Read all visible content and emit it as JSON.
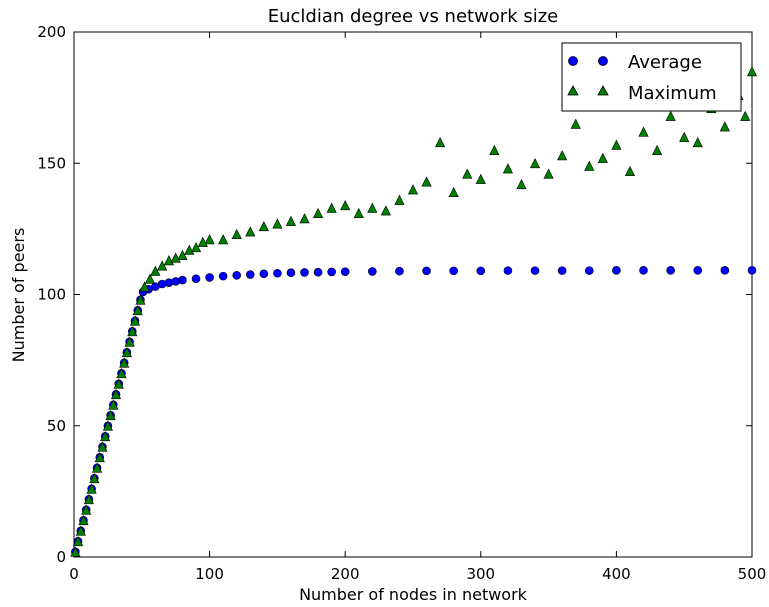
{
  "chart_data": {
    "type": "scatter",
    "title": "Eucldian degree vs network size",
    "xlabel": "Number of nodes in network",
    "ylabel": "Number of peers",
    "xlim": [
      0,
      500
    ],
    "ylim": [
      0,
      200
    ],
    "x_ticks": [
      0,
      100,
      200,
      300,
      400,
      500
    ],
    "y_ticks": [
      0,
      50,
      100,
      150,
      200
    ],
    "legend": {
      "placement": "top-right",
      "entries": [
        "Average",
        "Maximum"
      ]
    },
    "series": [
      {
        "name": "Average",
        "marker": "circle",
        "color": "#0000ff",
        "points": [
          [
            1,
            2
          ],
          [
            3,
            6
          ],
          [
            5,
            10
          ],
          [
            7,
            14
          ],
          [
            9,
            18
          ],
          [
            11,
            22
          ],
          [
            13,
            26
          ],
          [
            15,
            30
          ],
          [
            17,
            34
          ],
          [
            19,
            38
          ],
          [
            21,
            42
          ],
          [
            23,
            46
          ],
          [
            25,
            50
          ],
          [
            27,
            54
          ],
          [
            29,
            58
          ],
          [
            31,
            62
          ],
          [
            33,
            66
          ],
          [
            35,
            70
          ],
          [
            37,
            74
          ],
          [
            39,
            78
          ],
          [
            41,
            82
          ],
          [
            43,
            86
          ],
          [
            45,
            90
          ],
          [
            47,
            94
          ],
          [
            49,
            98
          ],
          [
            51,
            101
          ],
          [
            55,
            102
          ],
          [
            60,
            103
          ],
          [
            65,
            104
          ],
          [
            70,
            104.5
          ],
          [
            75,
            105
          ],
          [
            80,
            105.5
          ],
          [
            90,
            106
          ],
          [
            100,
            106.5
          ],
          [
            110,
            107
          ],
          [
            120,
            107.3
          ],
          [
            130,
            107.6
          ],
          [
            140,
            107.9
          ],
          [
            150,
            108.1
          ],
          [
            160,
            108.3
          ],
          [
            170,
            108.4
          ],
          [
            180,
            108.5
          ],
          [
            190,
            108.6
          ],
          [
            200,
            108.7
          ],
          [
            220,
            108.8
          ],
          [
            240,
            108.9
          ],
          [
            260,
            109
          ],
          [
            280,
            109
          ],
          [
            300,
            109
          ],
          [
            320,
            109.1
          ],
          [
            340,
            109.1
          ],
          [
            360,
            109.1
          ],
          [
            380,
            109.1
          ],
          [
            400,
            109.2
          ],
          [
            420,
            109.2
          ],
          [
            440,
            109.2
          ],
          [
            460,
            109.2
          ],
          [
            480,
            109.2
          ],
          [
            500,
            109.2
          ]
        ]
      },
      {
        "name": "Maximum",
        "marker": "triangle-up",
        "color": "#008000",
        "points": [
          [
            1,
            2
          ],
          [
            3,
            6
          ],
          [
            5,
            10
          ],
          [
            7,
            14
          ],
          [
            9,
            18
          ],
          [
            11,
            22
          ],
          [
            13,
            26
          ],
          [
            15,
            30
          ],
          [
            17,
            34
          ],
          [
            19,
            38
          ],
          [
            21,
            42
          ],
          [
            23,
            46
          ],
          [
            25,
            50
          ],
          [
            27,
            54
          ],
          [
            29,
            58
          ],
          [
            31,
            62
          ],
          [
            33,
            66
          ],
          [
            35,
            70
          ],
          [
            37,
            74
          ],
          [
            39,
            78
          ],
          [
            41,
            82
          ],
          [
            43,
            86
          ],
          [
            45,
            90
          ],
          [
            47,
            94
          ],
          [
            49,
            98
          ],
          [
            52,
            103
          ],
          [
            56,
            106
          ],
          [
            60,
            109
          ],
          [
            65,
            111
          ],
          [
            70,
            113
          ],
          [
            75,
            114
          ],
          [
            80,
            115
          ],
          [
            85,
            117
          ],
          [
            90,
            118
          ],
          [
            95,
            120
          ],
          [
            100,
            121
          ],
          [
            110,
            121
          ],
          [
            120,
            123
          ],
          [
            130,
            124
          ],
          [
            140,
            126
          ],
          [
            150,
            127
          ],
          [
            160,
            128
          ],
          [
            170,
            129
          ],
          [
            180,
            131
          ],
          [
            190,
            133
          ],
          [
            200,
            134
          ],
          [
            210,
            131
          ],
          [
            220,
            133
          ],
          [
            230,
            132
          ],
          [
            240,
            136
          ],
          [
            250,
            140
          ],
          [
            260,
            143
          ],
          [
            270,
            158
          ],
          [
            280,
            139
          ],
          [
            290,
            146
          ],
          [
            300,
            144
          ],
          [
            310,
            155
          ],
          [
            320,
            148
          ],
          [
            330,
            142
          ],
          [
            340,
            150
          ],
          [
            350,
            146
          ],
          [
            360,
            153
          ],
          [
            370,
            165
          ],
          [
            380,
            149
          ],
          [
            390,
            152
          ],
          [
            400,
            157
          ],
          [
            410,
            147
          ],
          [
            420,
            162
          ],
          [
            430,
            155
          ],
          [
            440,
            168
          ],
          [
            450,
            160
          ],
          [
            460,
            158
          ],
          [
            470,
            171
          ],
          [
            480,
            164
          ],
          [
            490,
            176
          ],
          [
            495,
            168
          ],
          [
            500,
            185
          ]
        ]
      }
    ]
  }
}
